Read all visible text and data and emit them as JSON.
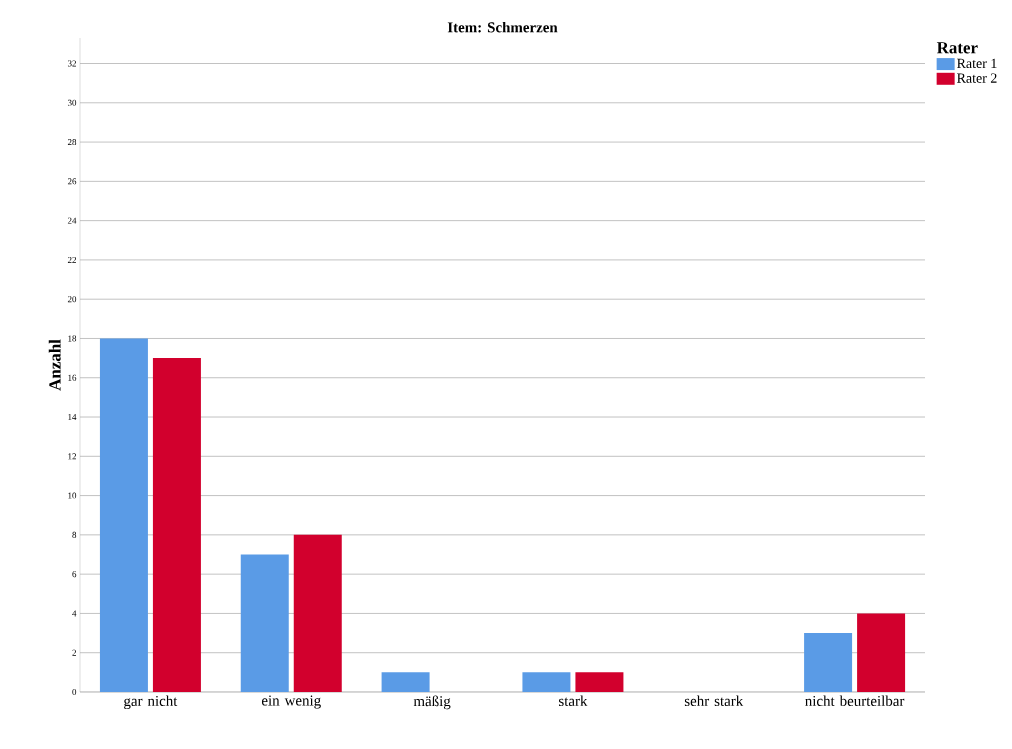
{
  "chart_data": {
    "type": "bar",
    "title": "Item: Schmerzen",
    "ylabel": "Anzahl",
    "legend_title": "Rater",
    "categories": [
      "gar nicht",
      "ein wenig",
      "mäßig",
      "stark",
      "sehr stark",
      "nicht beurteilbar"
    ],
    "series": [
      {
        "name": "Rater 1",
        "color": "#5a9be6",
        "values": [
          18,
          7,
          1,
          1,
          0,
          3
        ]
      },
      {
        "name": "Rater 2",
        "color": "#d2002d",
        "values": [
          17,
          8,
          0,
          1,
          0,
          4
        ]
      }
    ],
    "ylim": [
      0,
      33.3
    ],
    "yticks": [
      0,
      2,
      4,
      6,
      8,
      10,
      12,
      14,
      16,
      18,
      20,
      22,
      24,
      26,
      28,
      30,
      32
    ],
    "grid": "y",
    "legend": "top right"
  }
}
